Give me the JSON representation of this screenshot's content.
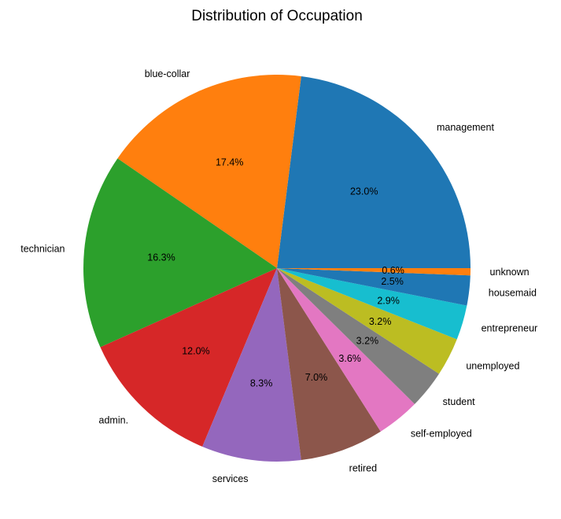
{
  "chart_data": {
    "type": "pie",
    "title": "Distribution of Occupation",
    "start_angle_deg": 0,
    "direction": "counterclockwise",
    "slices": [
      {
        "label": "management",
        "value": 23.0,
        "pct_text": "23.0%",
        "color": "#1f77b4"
      },
      {
        "label": "blue-collar",
        "value": 17.4,
        "pct_text": "17.4%",
        "color": "#ff7f0e"
      },
      {
        "label": "technician",
        "value": 16.3,
        "pct_text": "16.3%",
        "color": "#2ca02c"
      },
      {
        "label": "admin.",
        "value": 12.0,
        "pct_text": "12.0%",
        "color": "#d62728"
      },
      {
        "label": "services",
        "value": 8.3,
        "pct_text": "8.3%",
        "color": "#9467bd"
      },
      {
        "label": "retired",
        "value": 7.0,
        "pct_text": "7.0%",
        "color": "#8c564b"
      },
      {
        "label": "self-employed",
        "value": 3.6,
        "pct_text": "3.6%",
        "color": "#e377c2"
      },
      {
        "label": "student",
        "value": 3.2,
        "pct_text": "3.2%",
        "color": "#7f7f7f"
      },
      {
        "label": "unemployed",
        "value": 3.2,
        "pct_text": "3.2%",
        "color": "#bcbd22"
      },
      {
        "label": "entrepreneur",
        "value": 2.9,
        "pct_text": "2.9%",
        "color": "#17becf"
      },
      {
        "label": "housemaid",
        "value": 2.5,
        "pct_text": "2.5%",
        "color": "#1f77b4"
      },
      {
        "label": "unknown",
        "value": 0.6,
        "pct_text": "0.6%",
        "color": "#ff7f0e"
      }
    ]
  }
}
